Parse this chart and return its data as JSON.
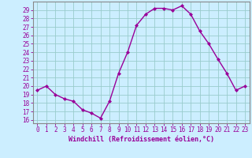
{
  "x": [
    0,
    1,
    2,
    3,
    4,
    5,
    6,
    7,
    8,
    9,
    10,
    11,
    12,
    13,
    14,
    15,
    16,
    17,
    18,
    19,
    20,
    21,
    22,
    23
  ],
  "y": [
    19.5,
    20.0,
    19.0,
    18.5,
    18.2,
    17.2,
    16.8,
    16.2,
    18.2,
    21.5,
    24.0,
    27.2,
    28.5,
    29.2,
    29.2,
    29.0,
    29.5,
    28.5,
    26.5,
    25.0,
    23.2,
    21.5,
    19.5,
    20.0
  ],
  "line_color": "#990099",
  "marker": "D",
  "markersize": 2.0,
  "linewidth": 1.0,
  "bg_color": "#cceeff",
  "grid_color": "#99cccc",
  "xlabel": "Windchill (Refroidissement éolien,°C)",
  "xlabel_fontsize": 6.0,
  "xtick_labels": [
    "0",
    "1",
    "2",
    "3",
    "4",
    "5",
    "6",
    "7",
    "8",
    "9",
    "10",
    "11",
    "12",
    "13",
    "14",
    "15",
    "16",
    "17",
    "18",
    "19",
    "20",
    "21",
    "22",
    "23"
  ],
  "ytick_min": 16,
  "ytick_max": 29,
  "ytick_step": 1,
  "xlim": [
    -0.5,
    23.5
  ],
  "ylim": [
    15.6,
    30.0
  ],
  "tick_color": "#990099",
  "tick_fontsize": 5.5,
  "border_color": "#888888"
}
